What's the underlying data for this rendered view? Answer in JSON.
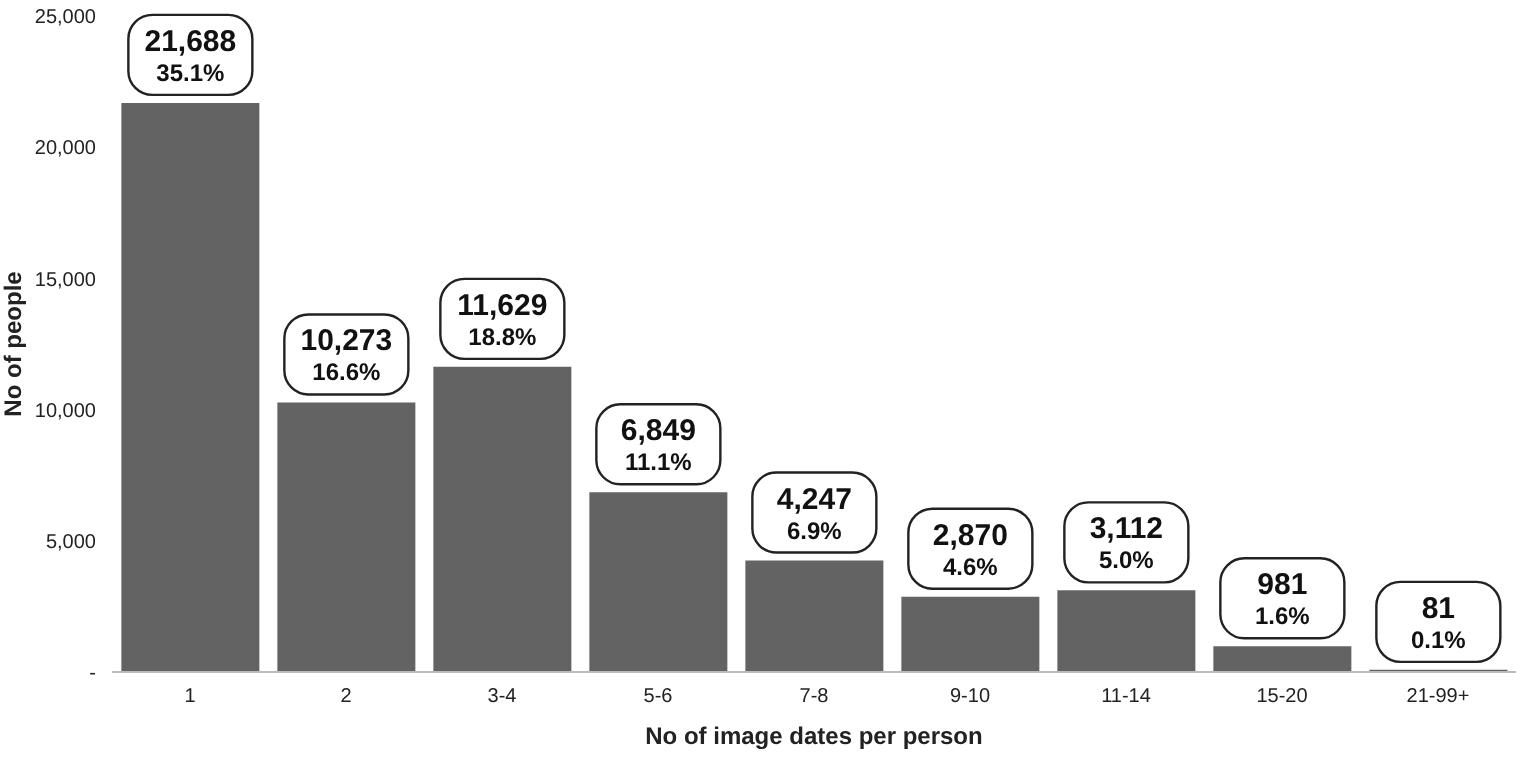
{
  "chart_data": {
    "type": "bar",
    "xlabel": "No of image dates per person",
    "ylabel": "No of people",
    "categories": [
      "1",
      "2",
      "3-4",
      "5-6",
      "7-8",
      "9-10",
      "11-14",
      "15-20",
      "21-99+"
    ],
    "values": [
      21688,
      10273,
      11629,
      6849,
      4247,
      2870,
      3112,
      981,
      81
    ],
    "value_labels": [
      "21,688\n35.1%",
      "10,273\n16.6%",
      "11,629\n18.8%",
      "6,849\n11.1%",
      "4,247\n6.9%",
      "2,870\n4.6%",
      "3,112\n5.0%",
      "981\n1.6%",
      "81\n0.1%"
    ],
    "color": "#636363",
    "ylim": [
      0,
      25000
    ],
    "yticks": [
      {
        "value": 0,
        "label": "-"
      },
      {
        "value": 5000,
        "label": "5,000"
      },
      {
        "value": 10000,
        "label": "10,000"
      },
      {
        "value": 15000,
        "label": "15,000"
      },
      {
        "value": 20000,
        "label": "20,000"
      },
      {
        "value": 25000,
        "label": "25,000"
      }
    ],
    "grid": false,
    "legend": false
  }
}
